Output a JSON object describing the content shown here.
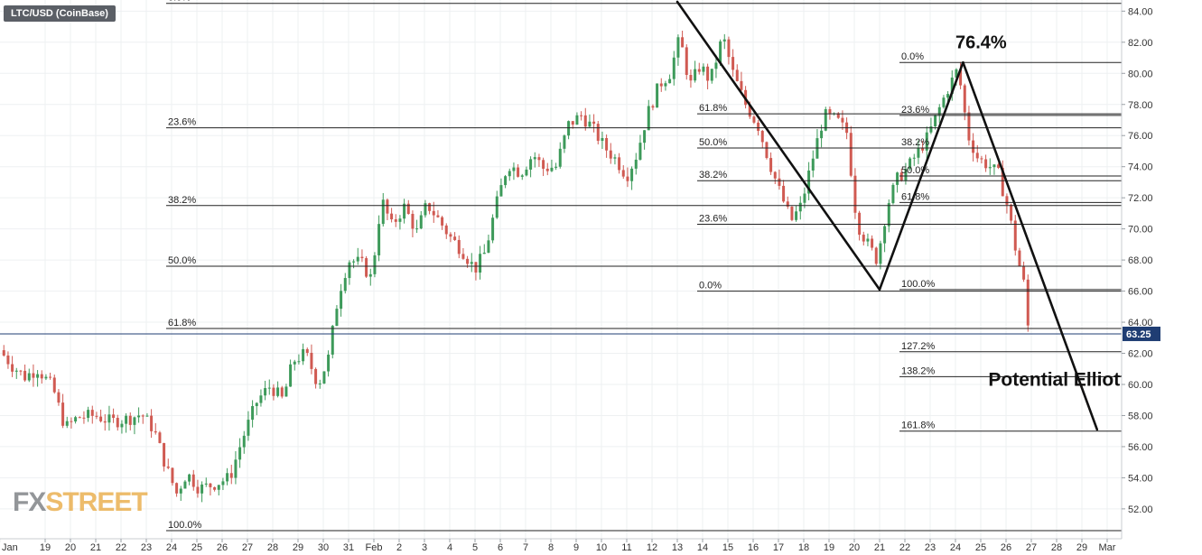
{
  "header": {
    "pair": "LTC/USD (CoinBase)"
  },
  "watermark": {
    "part1": "FX",
    "part2": "STREET"
  },
  "chart_data": {
    "type": "candlestick",
    "title": "",
    "xlabel": "",
    "ylabel": "",
    "ylim": [
      50.6,
      84.6
    ],
    "y_ticks": [
      84,
      82,
      80,
      78,
      76,
      74,
      72,
      70,
      68,
      66,
      64,
      62,
      60,
      58,
      56,
      54,
      52
    ],
    "last_price": 63.25,
    "last_price_label": "63.25",
    "x_ticks": [
      {
        "label": "Jan",
        "i": -1.8
      },
      {
        "label": "19",
        "i": 0
      },
      {
        "label": "20",
        "i": 1
      },
      {
        "label": "21",
        "i": 2
      },
      {
        "label": "22",
        "i": 3
      },
      {
        "label": "23",
        "i": 4
      },
      {
        "label": "24",
        "i": 5
      },
      {
        "label": "25",
        "i": 6
      },
      {
        "label": "26",
        "i": 7
      },
      {
        "label": "27",
        "i": 8
      },
      {
        "label": "28",
        "i": 9
      },
      {
        "label": "29",
        "i": 10
      },
      {
        "label": "30",
        "i": 11
      },
      {
        "label": "31",
        "i": 12
      },
      {
        "label": "Feb",
        "i": 13
      },
      {
        "label": "2",
        "i": 14
      },
      {
        "label": "3",
        "i": 15
      },
      {
        "label": "4",
        "i": 16
      },
      {
        "label": "5",
        "i": 17
      },
      {
        "label": "6",
        "i": 18
      },
      {
        "label": "7",
        "i": 19
      },
      {
        "label": "8",
        "i": 20
      },
      {
        "label": "9",
        "i": 21
      },
      {
        "label": "10",
        "i": 22
      },
      {
        "label": "11",
        "i": 23
      },
      {
        "label": "12",
        "i": 24
      },
      {
        "label": "13",
        "i": 25
      },
      {
        "label": "14",
        "i": 26
      },
      {
        "label": "15",
        "i": 27
      },
      {
        "label": "16",
        "i": 28
      },
      {
        "label": "17",
        "i": 29
      },
      {
        "label": "18",
        "i": 30
      },
      {
        "label": "19",
        "i": 31
      },
      {
        "label": "20",
        "i": 32
      },
      {
        "label": "21",
        "i": 33
      },
      {
        "label": "22",
        "i": 34
      },
      {
        "label": "23",
        "i": 35
      },
      {
        "label": "24",
        "i": 36
      },
      {
        "label": "25",
        "i": 37
      },
      {
        "label": "26",
        "i": 38
      },
      {
        "label": "27",
        "i": 39
      },
      {
        "label": "28",
        "i": 40
      },
      {
        "label": "29",
        "i": 41
      },
      {
        "label": "Mar",
        "i": 42
      }
    ],
    "daily_path": [
      [
        -1.8,
        62.2
      ],
      [
        -1.3,
        61.2
      ],
      [
        -0.8,
        60.5
      ],
      [
        -0.3,
        61.0
      ],
      [
        0.3,
        59.8
      ],
      [
        0.8,
        57.2
      ],
      [
        1.3,
        57.9
      ],
      [
        2.0,
        58.0
      ],
      [
        2.6,
        57.6
      ],
      [
        3.3,
        57.8
      ],
      [
        3.8,
        58.1
      ],
      [
        4.3,
        57.1
      ],
      [
        4.8,
        54.6
      ],
      [
        5.2,
        53.0
      ],
      [
        5.6,
        54.3
      ],
      [
        6.1,
        53.3
      ],
      [
        6.7,
        53.6
      ],
      [
        7.3,
        54.0
      ],
      [
        7.8,
        56.5
      ],
      [
        8.4,
        59.0
      ],
      [
        8.9,
        59.9
      ],
      [
        9.4,
        59.0
      ],
      [
        9.8,
        61.5
      ],
      [
        10.3,
        62.0
      ],
      [
        10.8,
        60.0
      ],
      [
        11.2,
        61.7
      ],
      [
        11.6,
        65.8
      ],
      [
        12.0,
        68.0
      ],
      [
        12.5,
        67.8
      ],
      [
        12.9,
        66.8
      ],
      [
        13.3,
        71.9
      ],
      [
        13.7,
        70.2
      ],
      [
        14.2,
        71.4
      ],
      [
        14.7,
        69.8
      ],
      [
        15.1,
        71.6
      ],
      [
        15.6,
        70.5
      ],
      [
        16.0,
        69.5
      ],
      [
        16.5,
        68.6
      ],
      [
        17.0,
        67.4
      ],
      [
        17.4,
        68.5
      ],
      [
        17.8,
        71.3
      ],
      [
        18.3,
        74.2
      ],
      [
        18.8,
        73.6
      ],
      [
        19.3,
        74.8
      ],
      [
        19.7,
        73.9
      ],
      [
        20.2,
        74.0
      ],
      [
        20.7,
        76.7
      ],
      [
        21.2,
        77.3
      ],
      [
        21.6,
        76.6
      ],
      [
        22.1,
        75.3
      ],
      [
        22.6,
        74.4
      ],
      [
        23.0,
        73.4
      ],
      [
        23.4,
        74.8
      ],
      [
        23.8,
        77.3
      ],
      [
        24.3,
        79.3
      ],
      [
        24.7,
        80.0
      ],
      [
        25.1,
        82.3
      ],
      [
        25.5,
        79.2
      ],
      [
        25.9,
        80.5
      ],
      [
        26.3,
        79.5
      ],
      [
        26.8,
        82.4
      ],
      [
        27.2,
        80.0
      ],
      [
        27.7,
        78.0
      ],
      [
        28.2,
        76.6
      ],
      [
        28.6,
        74.5
      ],
      [
        29.0,
        72.6
      ],
      [
        29.5,
        70.5
      ],
      [
        29.9,
        71.5
      ],
      [
        30.3,
        74.2
      ],
      [
        30.8,
        77.3
      ],
      [
        31.3,
        77.0
      ],
      [
        31.7,
        76.2
      ],
      [
        32.1,
        70.4
      ],
      [
        32.5,
        69.1
      ],
      [
        32.9,
        68.0
      ],
      [
        33.3,
        71.5
      ],
      [
        33.7,
        73.2
      ],
      [
        34.1,
        73.9
      ],
      [
        34.5,
        74.9
      ],
      [
        34.9,
        75.9
      ],
      [
        35.3,
        77.5
      ],
      [
        35.7,
        79.0
      ],
      [
        36.1,
        80.3
      ],
      [
        36.5,
        76.0
      ],
      [
        36.9,
        74.5
      ],
      [
        37.3,
        74.1
      ],
      [
        37.7,
        73.5
      ],
      [
        38.1,
        71.2
      ],
      [
        38.4,
        68.5
      ],
      [
        38.7,
        66.5
      ],
      [
        38.9,
        63.25
      ]
    ],
    "fib_sets": [
      {
        "x_from": 5,
        "x_to": 43,
        "levels": [
          {
            "label": "100.0%",
            "value": 50.6
          },
          {
            "label": "61.8%",
            "value": 63.6
          },
          {
            "label": "50.0%",
            "value": 67.6
          },
          {
            "label": "38.2%",
            "value": 71.5
          },
          {
            "label": "23.6%",
            "value": 76.5
          },
          {
            "label": "0.0%",
            "value": 84.5
          }
        ]
      },
      {
        "x_from": 26,
        "x_to": 43,
        "levels": [
          {
            "label": "61.8%",
            "value": 77.4
          },
          {
            "label": "50.0%",
            "value": 75.2
          },
          {
            "label": "38.2%",
            "value": 73.1
          },
          {
            "label": "23.6%",
            "value": 70.3
          },
          {
            "label": "0.0%",
            "value": 66.0
          }
        ]
      },
      {
        "x_from": 34,
        "x_to": 43,
        "levels": [
          {
            "label": "0.0%",
            "value": 80.7
          },
          {
            "label": "23.6%",
            "value": 77.3
          },
          {
            "label": "38.2%",
            "value": 75.2
          },
          {
            "label": "50.0%",
            "value": 73.4
          },
          {
            "label": "61.8%",
            "value": 71.7
          },
          {
            "label": "100.0%",
            "value": 66.1
          },
          {
            "label": "127.2%",
            "value": 62.1
          },
          {
            "label": "138.2%",
            "value": 60.5
          },
          {
            "label": "161.8%",
            "value": 57.0
          }
        ]
      }
    ],
    "wave_lines": [
      {
        "from": [
          25.0,
          84.6
        ],
        "to": [
          33.0,
          66.1
        ]
      },
      {
        "from": [
          33.0,
          66.1
        ],
        "to": [
          36.3,
          80.7
        ]
      },
      {
        "from": [
          36.3,
          80.7
        ],
        "to": [
          41.6,
          57.1
        ]
      }
    ],
    "annotations": [
      {
        "text": "76.4%",
        "x": 36.0,
        "y": 81.6
      },
      {
        "text": "Potential Elliott Wave Target",
        "x": 37.3,
        "y": 59.9
      }
    ]
  }
}
